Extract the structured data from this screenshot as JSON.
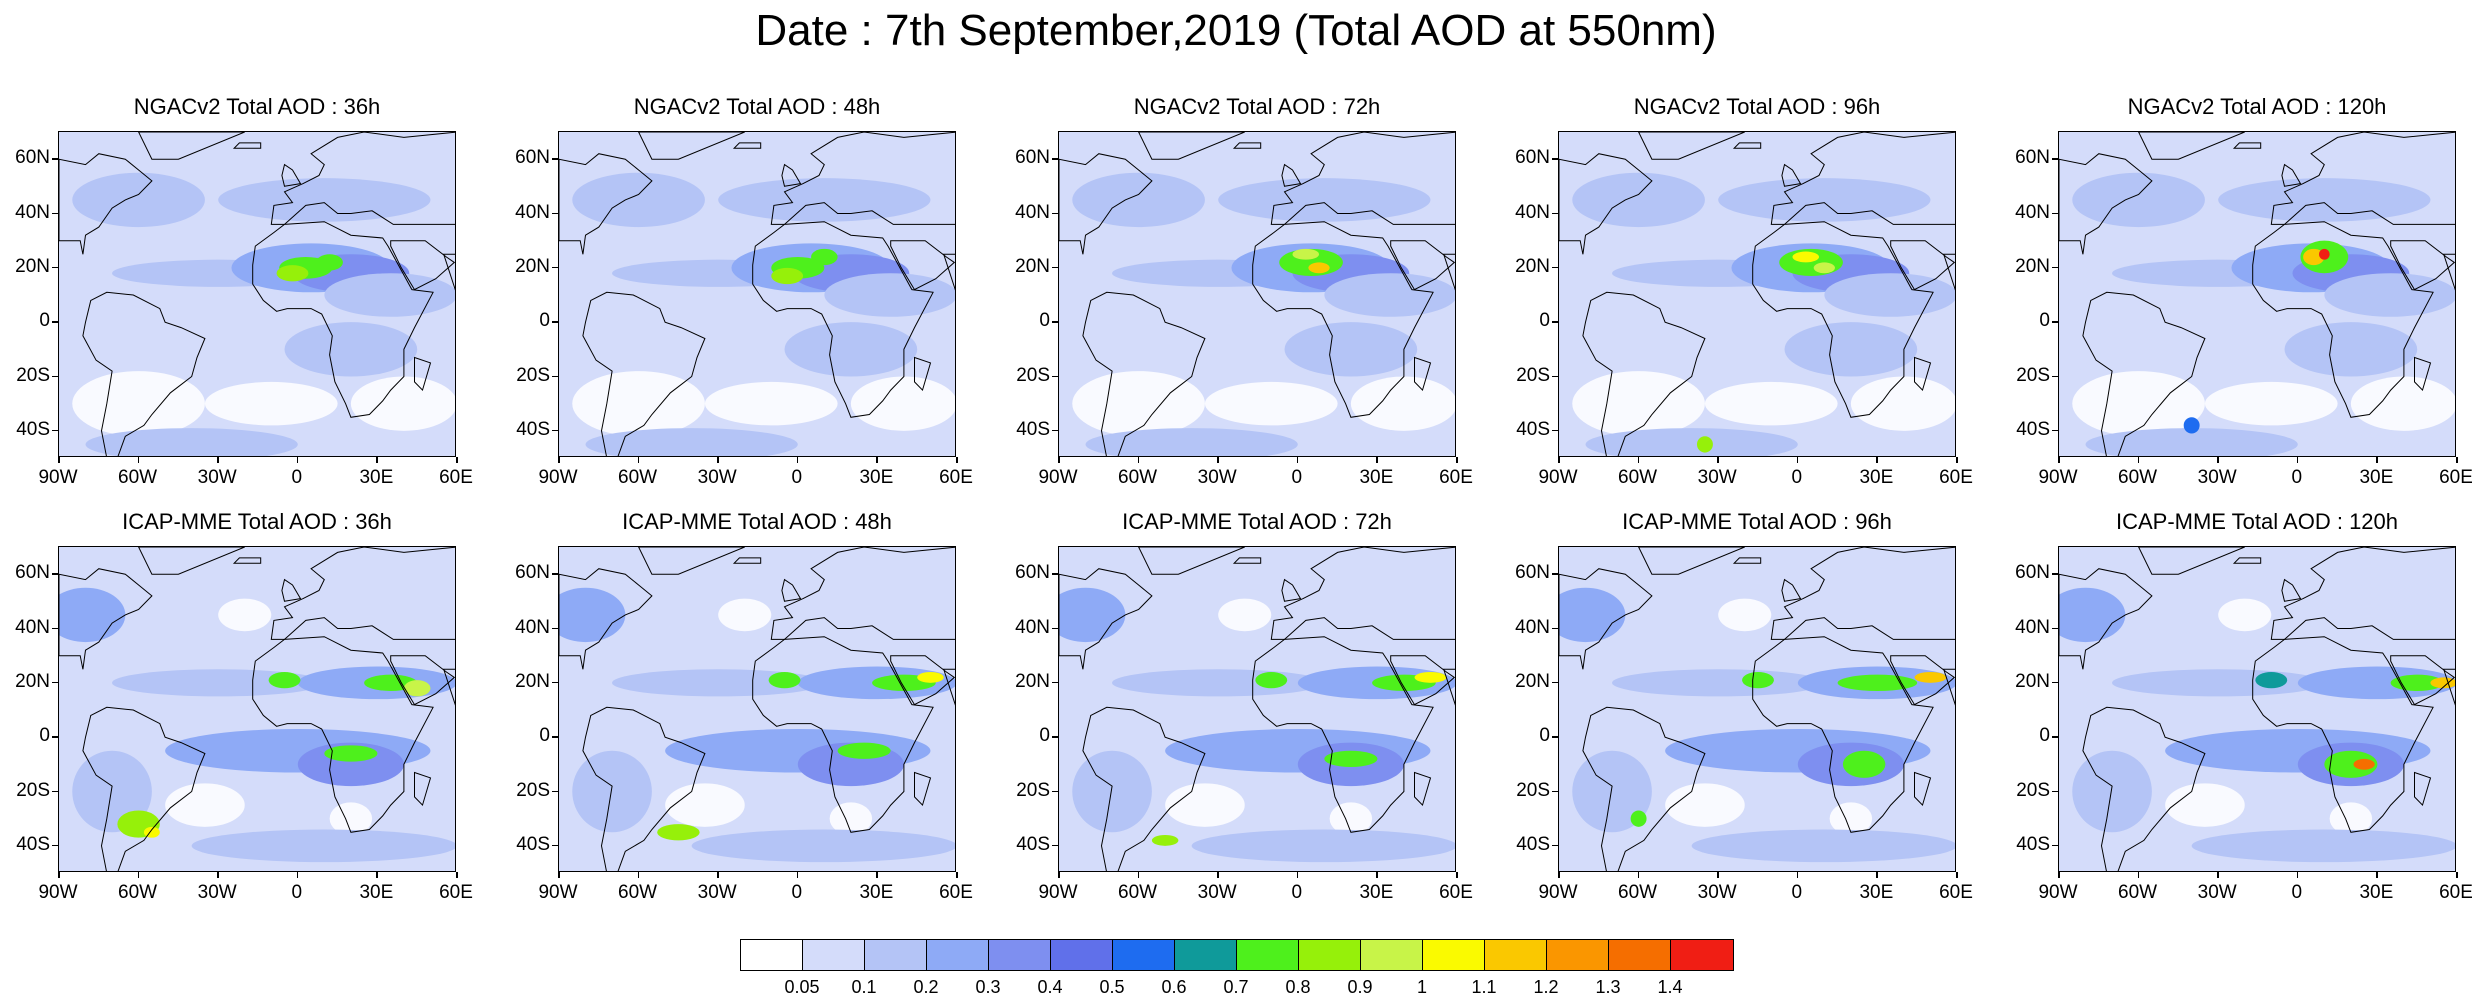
{
  "title": "Date : 7th September,2019 (Total AOD at 550nm)",
  "panels": [
    {
      "title": "NGACv2 Total AOD : 36h"
    },
    {
      "title": "NGACv2 Total AOD : 48h"
    },
    {
      "title": "NGACv2 Total AOD : 72h"
    },
    {
      "title": "NGACv2 Total AOD : 96h"
    },
    {
      "title": "NGACv2 Total AOD : 120h"
    },
    {
      "title": "ICAP-MME Total AOD : 36h"
    },
    {
      "title": "ICAP-MME Total AOD : 48h"
    },
    {
      "title": "ICAP-MME Total AOD : 72h"
    },
    {
      "title": "ICAP-MME Total AOD : 96h"
    },
    {
      "title": "ICAP-MME Total AOD : 120h"
    }
  ],
  "lat_labels": [
    "60N",
    "40N",
    "20N",
    "0",
    "20S",
    "40S"
  ],
  "lon_labels": [
    "90W",
    "60W",
    "30W",
    "0",
    "30E",
    "60E"
  ],
  "colorbar": {
    "labels": [
      "0.05",
      "0.1",
      "0.2",
      "0.3",
      "0.4",
      "0.5",
      "0.6",
      "0.7",
      "0.8",
      "0.9",
      "1",
      "1.1",
      "1.2",
      "1.3",
      "1.4"
    ],
    "colors": [
      "#ffffff",
      "#d4dcfa",
      "#b4c4f6",
      "#8eaaf6",
      "#7e8ff0",
      "#6070ea",
      "#1e6cf0",
      "#0f9a9a",
      "#4ef01c",
      "#96f00a",
      "#c8f448",
      "#fafa00",
      "#fac800",
      "#fa9600",
      "#f56e00",
      "#f01e14"
    ]
  },
  "chart_data": {
    "type": "heatmap",
    "title": "Date : 7th September,2019 (Total AOD at 550nm)",
    "rows": [
      "NGACv2",
      "ICAP-MME"
    ],
    "forecast_hours": [
      "36h",
      "48h",
      "72h",
      "96h",
      "120h"
    ],
    "lon_range": [
      -90,
      60
    ],
    "lat_range": [
      -50,
      70
    ],
    "levels": [
      0.05,
      0.1,
      0.2,
      0.3,
      0.4,
      0.5,
      0.6,
      0.7,
      0.8,
      0.9,
      1,
      1.1,
      1.2,
      1.3,
      1.4
    ]
  }
}
